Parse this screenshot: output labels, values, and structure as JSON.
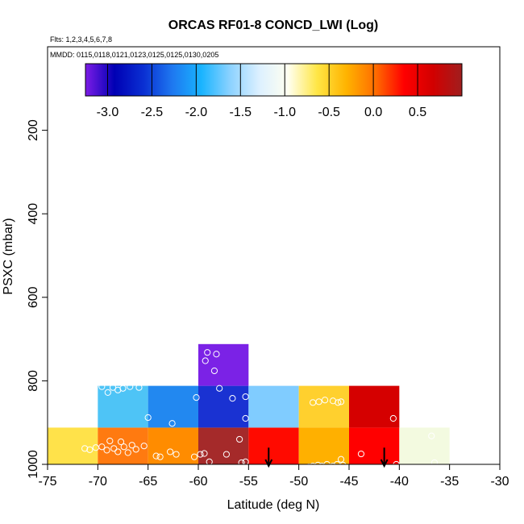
{
  "chart_data": {
    "type": "heatmap",
    "title": "ORCAS RF01-8 CONCD_LWI (Log)",
    "subtitle_flights": "Flts: 1,2,3,4,5,6,7,8",
    "subtitle_dates": "MMDD: 0115,0118,0121,0123,0125,0125,0130,0205",
    "xlabel": "Latitude (deg N)",
    "ylabel": "PSXC (mbar)",
    "xlim": [
      -75,
      -30
    ],
    "ylim": [
      1000,
      0
    ],
    "x_ticks": [
      -75,
      -70,
      -65,
      -60,
      -55,
      -50,
      -45,
      -40,
      -35,
      -30
    ],
    "x_tick_labels": [
      "-75",
      "-70",
      "-65",
      "-60",
      "-55",
      "-50",
      "-45",
      "-40",
      "-35",
      "-30"
    ],
    "y_ticks": [
      200,
      400,
      600,
      800,
      1000
    ],
    "y_tick_labels": [
      "200",
      "400",
      "600",
      "800",
      "1000"
    ],
    "colorbar": {
      "range": [
        -3.25,
        1.0
      ],
      "colors": [
        "#7d1ce6",
        "#0000b4",
        "#0a2fd2",
        "#1e78f0",
        "#19b4ff",
        "#8cd2ff",
        "#dcf0ff",
        "#fffff0",
        "#ffe646",
        "#ffb400",
        "#ff6e00",
        "#ff0000",
        "#d20000",
        "#a01e1e"
      ],
      "tick_values": [
        -3.0,
        -2.5,
        -2.0,
        -1.5,
        -1.0,
        -0.5,
        0.0,
        0.5
      ],
      "tick_labels": [
        "-3.0",
        "-2.5",
        "-2.0",
        "-1.5",
        "-1.0",
        "-0.5",
        "0.0",
        "0.5"
      ]
    },
    "cells": [
      {
        "x0": -75,
        "x1": -70,
        "y0": 912,
        "y1": 1000,
        "color": "#ffe24a"
      },
      {
        "x0": -70,
        "x1": -65,
        "y0": 912,
        "y1": 1000,
        "color": "#ff7a10"
      },
      {
        "x0": -65,
        "x1": -60,
        "y0": 912,
        "y1": 1000,
        "color": "#ff8c00"
      },
      {
        "x0": -60,
        "x1": -55,
        "y0": 912,
        "y1": 1000,
        "color": "#a52a2a"
      },
      {
        "x0": -55,
        "x1": -50,
        "y0": 912,
        "y1": 1000,
        "color": "#ff0a00"
      },
      {
        "x0": -50,
        "x1": -45,
        "y0": 912,
        "y1": 1000,
        "color": "#ffb000"
      },
      {
        "x0": -45,
        "x1": -40,
        "y0": 912,
        "y1": 1000,
        "color": "#ff0000"
      },
      {
        "x0": -40,
        "x1": -35,
        "y0": 912,
        "y1": 1000,
        "color": "#f3fae0"
      },
      {
        "x0": -70,
        "x1": -65,
        "y0": 812,
        "y1": 912,
        "color": "#4ec4f6"
      },
      {
        "x0": -65,
        "x1": -60,
        "y0": 812,
        "y1": 912,
        "color": "#2288f0"
      },
      {
        "x0": -60,
        "x1": -55,
        "y0": 812,
        "y1": 912,
        "color": "#1a32d2"
      },
      {
        "x0": -55,
        "x1": -50,
        "y0": 812,
        "y1": 912,
        "color": "#80ccff"
      },
      {
        "x0": -50,
        "x1": -45,
        "y0": 812,
        "y1": 912,
        "color": "#ffd02e"
      },
      {
        "x0": -45,
        "x1": -40,
        "y0": 812,
        "y1": 912,
        "color": "#d50000"
      },
      {
        "x0": -60,
        "x1": -55,
        "y0": 712,
        "y1": 812,
        "color": "#7b22e6"
      }
    ],
    "points": [
      [
        -71.3,
        962
      ],
      [
        -70.8,
        965
      ],
      [
        -70.2,
        960
      ],
      [
        -69.6,
        958
      ],
      [
        -69.1,
        966
      ],
      [
        -68.8,
        944
      ],
      [
        -68.4,
        962
      ],
      [
        -68.0,
        970
      ],
      [
        -67.7,
        946
      ],
      [
        -67.4,
        958
      ],
      [
        -67.0,
        972
      ],
      [
        -66.6,
        954
      ],
      [
        -66.2,
        964
      ],
      [
        -65.4,
        956
      ],
      [
        -69.6,
        814
      ],
      [
        -69.0,
        828
      ],
      [
        -68.5,
        816
      ],
      [
        -68.0,
        822
      ],
      [
        -67.5,
        818
      ],
      [
        -66.8,
        814
      ],
      [
        -65.9,
        816
      ],
      [
        -65.0,
        888
      ],
      [
        -62.6,
        902
      ],
      [
        -64.2,
        980
      ],
      [
        -63.8,
        982
      ],
      [
        -62.8,
        970
      ],
      [
        -62.2,
        976
      ],
      [
        -60.4,
        982
      ],
      [
        -59.8,
        976
      ],
      [
        -59.4,
        974
      ],
      [
        -58.9,
        994
      ],
      [
        -57.2,
        976
      ],
      [
        -60.2,
        840
      ],
      [
        -57.9,
        818
      ],
      [
        -56.6,
        842
      ],
      [
        -55.3,
        838
      ],
      [
        -55.3,
        890
      ],
      [
        -59.3,
        752
      ],
      [
        -59.1,
        732
      ],
      [
        -58.2,
        736
      ],
      [
        -58.4,
        776
      ],
      [
        -55.9,
        940
      ],
      [
        -55.3,
        994
      ],
      [
        -55.7,
        996
      ],
      [
        -49.0,
        1006
      ],
      [
        -48.6,
        1004
      ],
      [
        -48.1,
        1002
      ],
      [
        -47.7,
        1004
      ],
      [
        -47.2,
        1000
      ],
      [
        -46.6,
        1004
      ],
      [
        -46.2,
        1000
      ],
      [
        -45.8,
        988
      ],
      [
        -45.6,
        1002
      ],
      [
        -48.6,
        852
      ],
      [
        -48.0,
        850
      ],
      [
        -47.4,
        846
      ],
      [
        -46.6,
        848
      ],
      [
        -46.1,
        852
      ],
      [
        -45.8,
        850
      ],
      [
        -43.8,
        975
      ],
      [
        -40.6,
        890
      ],
      [
        -40.3,
        1000
      ],
      [
        -36.8,
        932
      ],
      [
        -36.5,
        996
      ]
    ],
    "arrows": [
      {
        "x": -53.0,
        "y_start": 960,
        "y_end": 1010
      },
      {
        "x": -41.5,
        "y_start": 960,
        "y_end": 1010
      }
    ]
  }
}
